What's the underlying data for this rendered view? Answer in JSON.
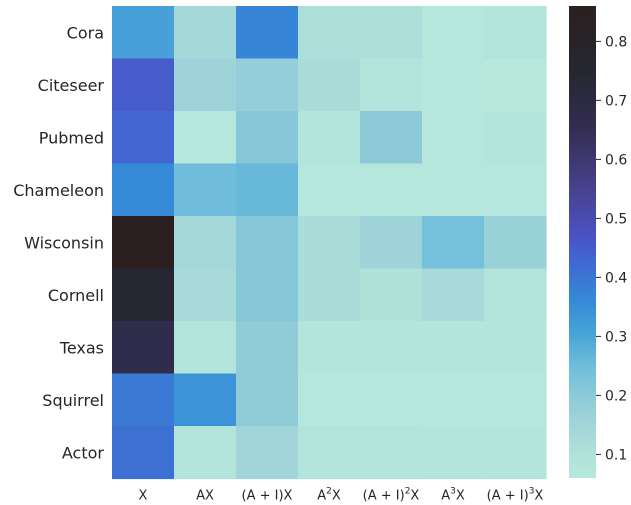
{
  "chart_data": {
    "type": "heatmap",
    "title": "",
    "xlabel": "",
    "ylabel": "",
    "rows": [
      "Cora",
      "Citeseer",
      "Pubmed",
      "Chameleon",
      "Wisconsin",
      "Cornell",
      "Texas",
      "Squirrel",
      "Actor"
    ],
    "columns": [
      {
        "base": "X",
        "sup": ""
      },
      {
        "base": "AX",
        "sup": ""
      },
      {
        "base": "(A + I)X",
        "sup": ""
      },
      {
        "base": "A",
        "sup": "2",
        "tail": "X"
      },
      {
        "base": "(A + I)",
        "sup": "2",
        "tail": "X"
      },
      {
        "base": "A",
        "sup": "3",
        "tail": "X"
      },
      {
        "base": "(A + I)",
        "sup": "3",
        "tail": "X"
      }
    ],
    "values": [
      [
        0.31,
        0.14,
        0.37,
        0.11,
        0.11,
        0.07,
        0.09
      ],
      [
        0.45,
        0.16,
        0.18,
        0.12,
        0.09,
        0.07,
        0.06
      ],
      [
        0.43,
        0.07,
        0.21,
        0.08,
        0.2,
        0.07,
        0.08
      ],
      [
        0.36,
        0.25,
        0.26,
        0.07,
        0.07,
        0.07,
        0.07
      ],
      [
        0.86,
        0.14,
        0.21,
        0.12,
        0.16,
        0.24,
        0.17
      ],
      [
        0.74,
        0.13,
        0.21,
        0.12,
        0.1,
        0.13,
        0.09
      ],
      [
        0.67,
        0.09,
        0.19,
        0.08,
        0.08,
        0.08,
        0.08
      ],
      [
        0.39,
        0.34,
        0.19,
        0.07,
        0.07,
        0.07,
        0.07
      ],
      [
        0.41,
        0.08,
        0.15,
        0.09,
        0.09,
        0.08,
        0.08
      ]
    ],
    "vmin": 0.06,
    "vmax": 0.86,
    "colorbar": {
      "ticks": [
        0.1,
        0.2,
        0.3,
        0.4,
        0.5,
        0.6,
        0.7,
        0.8
      ],
      "tick_labels": [
        "0.1",
        "0.2",
        "0.3",
        "0.4",
        "0.5",
        "0.6",
        "0.7",
        "0.8"
      ]
    },
    "colormap_stops": [
      {
        "value": 0.06,
        "color": "#b8e8dc"
      },
      {
        "value": 0.1,
        "color": "#b0e2da"
      },
      {
        "value": 0.15,
        "color": "#a2d5d9"
      },
      {
        "value": 0.2,
        "color": "#8ccad8"
      },
      {
        "value": 0.25,
        "color": "#6fbddb"
      },
      {
        "value": 0.3,
        "color": "#4aa6d8"
      },
      {
        "value": 0.36,
        "color": "#358ad7"
      },
      {
        "value": 0.42,
        "color": "#3f6bd2"
      },
      {
        "value": 0.47,
        "color": "#4a52c4"
      },
      {
        "value": 0.55,
        "color": "#47428f"
      },
      {
        "value": 0.65,
        "color": "#332e52"
      },
      {
        "value": 0.75,
        "color": "#262631"
      },
      {
        "value": 0.86,
        "color": "#2b201f"
      }
    ]
  }
}
